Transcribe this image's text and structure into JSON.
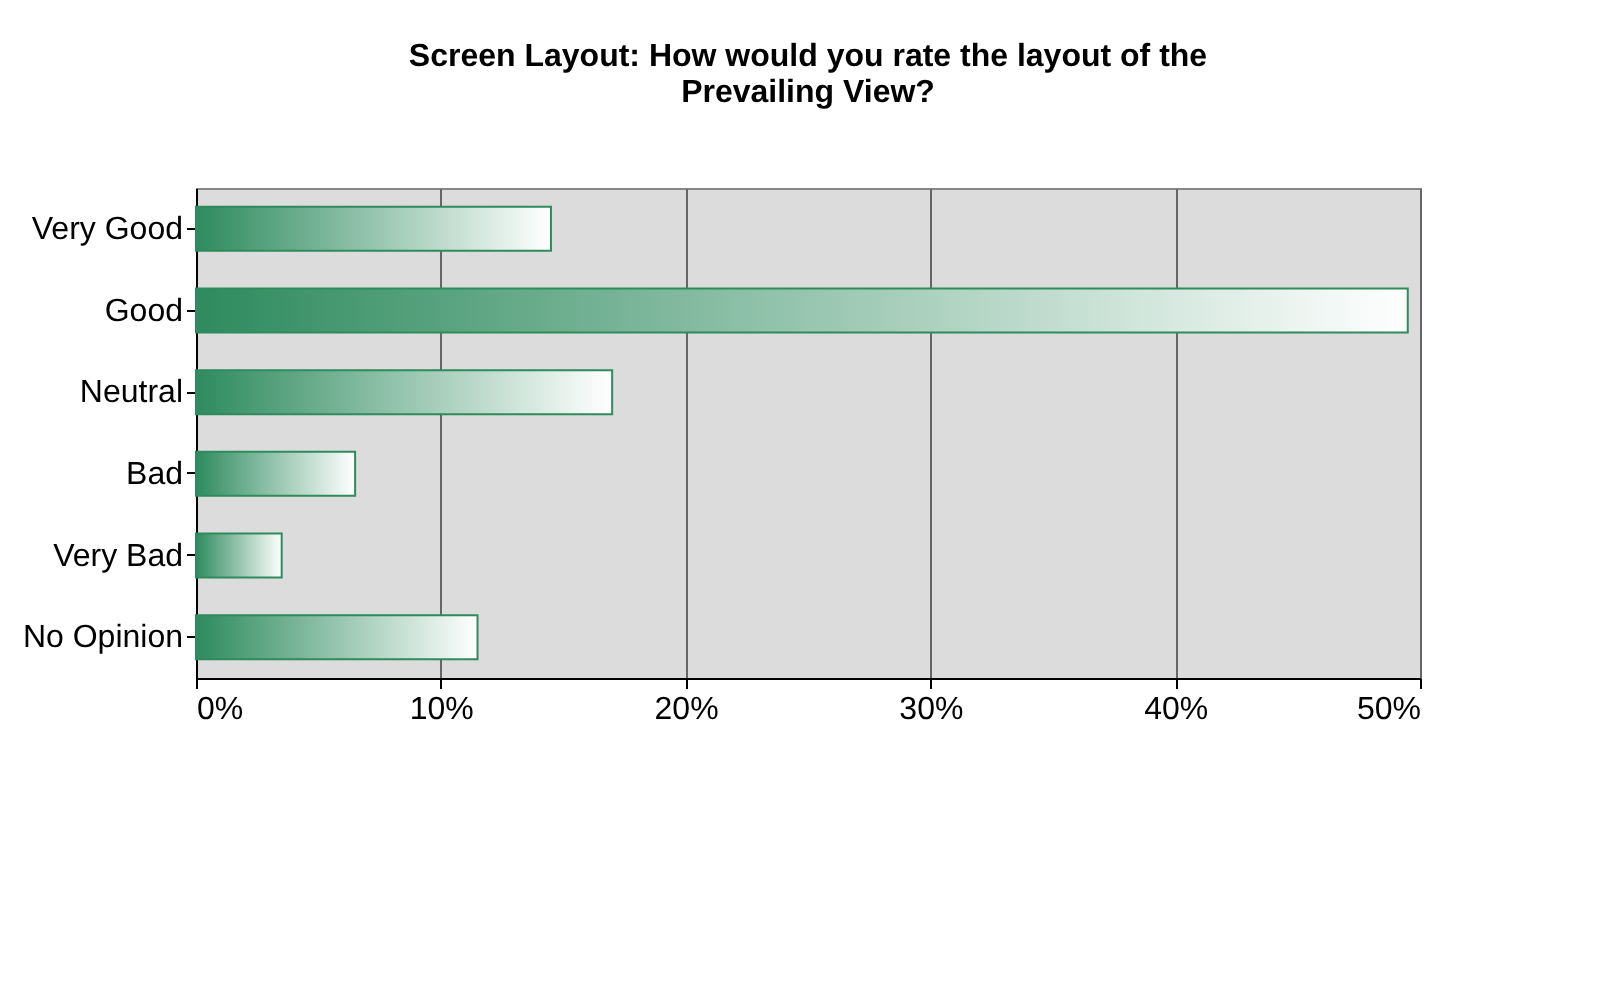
{
  "chart_data": {
    "type": "bar",
    "orientation": "horizontal",
    "title": "Screen Layout: How would you rate the layout of the Prevailing View?",
    "categories": [
      "Very Good",
      "Good",
      "Neutral",
      "Bad",
      "Very Bad",
      "No Opinion"
    ],
    "values": [
      14.5,
      49.5,
      17,
      6.5,
      3.5,
      11.5
    ],
    "color": "#2e8b5e",
    "xlim": [
      0,
      50
    ],
    "xticks": [
      {
        "value": 0,
        "label": "0%"
      },
      {
        "value": 10,
        "label": "10%"
      },
      {
        "value": 20,
        "label": "20%"
      },
      {
        "value": 30,
        "label": "30%"
      },
      {
        "value": 40,
        "label": "40%"
      },
      {
        "value": 50,
        "label": "50%"
      }
    ],
    "grid": "x"
  }
}
